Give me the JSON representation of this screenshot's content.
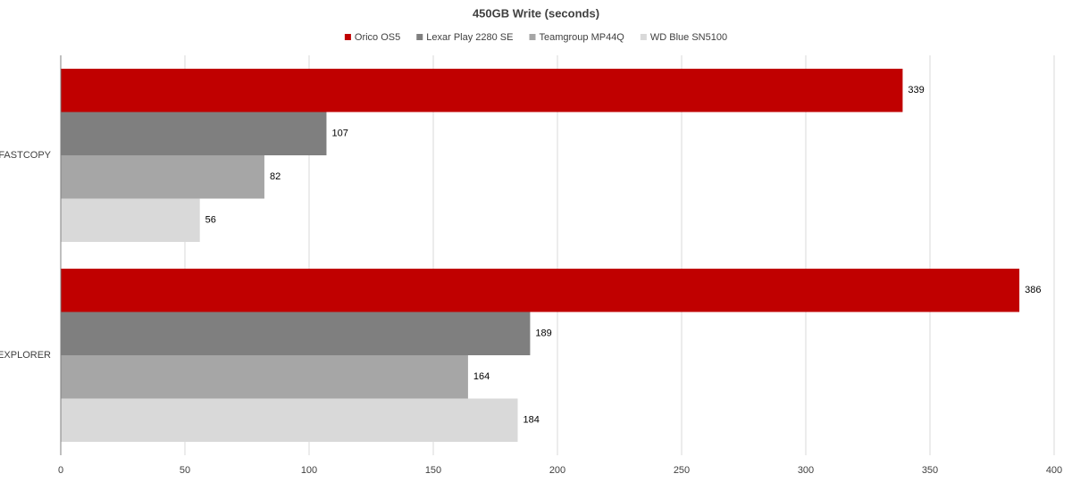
{
  "chart_data": {
    "type": "bar",
    "title": "450GB Write (seconds)",
    "categories": [
      "FASTCOPY",
      "EXPLORER"
    ],
    "series": [
      {
        "name": "Orico OS5",
        "color": "#c00000",
        "values": [
          339,
          386
        ]
      },
      {
        "name": "Lexar Play 2280 SE",
        "color": "#7f7f7f",
        "values": [
          107,
          189
        ]
      },
      {
        "name": "Teamgroup  MP44Q",
        "color": "#a6a6a6",
        "values": [
          82,
          164
        ]
      },
      {
        "name": "WD Blue SN5100",
        "color": "#d9d9d9",
        "values": [
          56,
          184
        ]
      }
    ],
    "xlim": [
      0,
      400
    ],
    "xticks": [
      0,
      50,
      100,
      150,
      200,
      250,
      300,
      350,
      400
    ],
    "grid": true
  }
}
